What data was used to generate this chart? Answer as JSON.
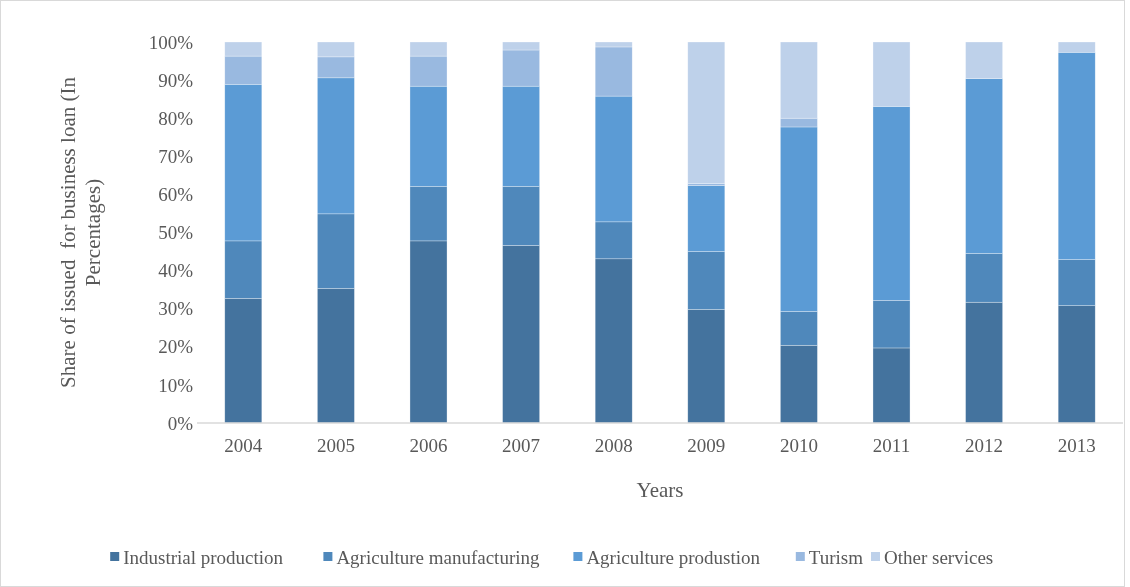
{
  "chart_data": {
    "type": "bar",
    "stacked": true,
    "xlabel": "Years",
    "ylabel": "Share of issued  for business loan (In Percentages)",
    "categories": [
      "2004",
      "2005",
      "2006",
      "2007",
      "2008",
      "2009",
      "2010",
      "2011",
      "2012",
      "2013"
    ],
    "ylim": [
      0,
      100
    ],
    "yticks": [
      {
        "value": 0,
        "label": "0%"
      },
      {
        "value": 10,
        "label": "10%"
      },
      {
        "value": 20,
        "label": "20%"
      },
      {
        "value": 30,
        "label": "30%"
      },
      {
        "value": 40,
        "label": "40%"
      },
      {
        "value": 50,
        "label": "50%"
      },
      {
        "value": 60,
        "label": "60%"
      },
      {
        "value": 70,
        "label": "70%"
      },
      {
        "value": 80,
        "label": "80%"
      },
      {
        "value": 90,
        "label": "90%"
      },
      {
        "value": 100,
        "label": "100%"
      }
    ],
    "grid": false,
    "legend": "bottom",
    "series": [
      {
        "name": "Industrial production",
        "color": "#44739e",
        "values": [
          32.7,
          35.3,
          47.8,
          46.6,
          43.1,
          29.8,
          20.4,
          19.7,
          31.7,
          30.8
        ]
      },
      {
        "name": "Agriculture manufacturing",
        "color": "#4f88bb",
        "values": [
          15.1,
          19.6,
          14.3,
          15.5,
          9.7,
          15.2,
          8.9,
          12.5,
          12.8,
          12.1
        ]
      },
      {
        "name": "Agriculture produstion",
        "color": "#5b9bd5",
        "values": [
          41.1,
          35.7,
          26.3,
          26.3,
          33.0,
          17.3,
          48.4,
          50.9,
          45.9,
          54.4
        ]
      },
      {
        "name": "Turism",
        "color": "#99b9e0",
        "values": [
          7.4,
          5.5,
          7.9,
          9.5,
          12.9,
          0.6,
          2.3,
          0,
          0,
          0
        ]
      },
      {
        "name": "Other services",
        "color": "#bed1ea",
        "values": [
          3.7,
          3.9,
          3.7,
          2.1,
          1.3,
          37.1,
          20.0,
          16.9,
          9.6,
          2.7
        ]
      }
    ]
  }
}
